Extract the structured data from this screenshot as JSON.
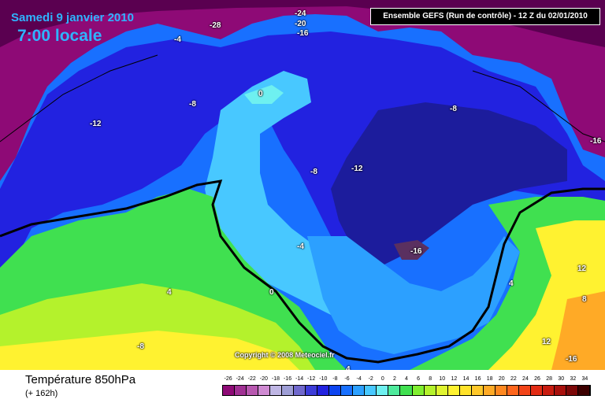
{
  "header": {
    "date": "Samedi 9 janvier 2010",
    "time": "7:00 locale",
    "run_info": "Ensemble GEFS (Run de contrôle)  -  12 Z du 02/01/2010"
  },
  "map": {
    "isotherm_labels": [
      "-28",
      "-24",
      "-20",
      "-16",
      "-4",
      "-12",
      "-8",
      "0",
      "-8",
      "-16",
      "-8",
      "-12",
      "-4",
      "-16",
      "4",
      "0",
      "-8",
      "4",
      "12",
      "8",
      "12",
      "-16",
      "4"
    ],
    "copyright": "Copyright © 2008 Meteociel.fr"
  },
  "legend": {
    "parameter": "Température 850hPa",
    "lead_time": "(+ 162h)",
    "scale_values": [
      "-26",
      "-24",
      "-22",
      "-20",
      "-18",
      "-16",
      "-14",
      "-12",
      "-10",
      "-8",
      "-6",
      "-4",
      "-2",
      "0",
      "2",
      "4",
      "6",
      "8",
      "10",
      "12",
      "14",
      "16",
      "18",
      "20",
      "22",
      "24",
      "26",
      "28",
      "30",
      "32",
      "34"
    ],
    "scale_colors": [
      "#8e0a76",
      "#a03093",
      "#b858b0",
      "#cf8ad2",
      "#bfb6e4",
      "#9e9ed6",
      "#7068cc",
      "#3c3cd8",
      "#2222e0",
      "#0c44f0",
      "#1870ff",
      "#2ca0ff",
      "#48c8ff",
      "#6ef0f0",
      "#4eea9c",
      "#40e050",
      "#80ee30",
      "#b4f22c",
      "#e0f430",
      "#fff230",
      "#ffe22a",
      "#ffc82a",
      "#ffaa26",
      "#ff8820",
      "#ff661c",
      "#f24418",
      "#e22c14",
      "#c81c10",
      "#a8100c",
      "#7c0808",
      "#3c0000"
    ]
  }
}
